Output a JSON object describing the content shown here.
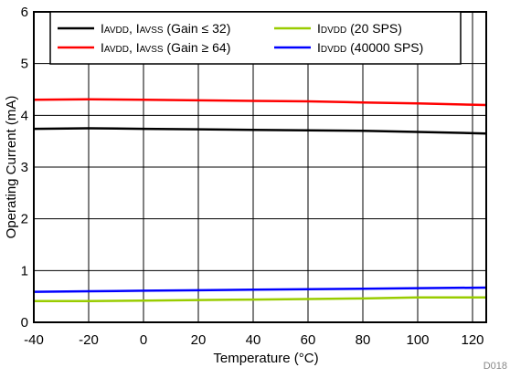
{
  "chart_data": {
    "type": "line",
    "xlabel": "Temperature (°C)",
    "ylabel": "Operating Current (mA)",
    "figure_id": "D018",
    "xlim": [
      -40,
      125
    ],
    "ylim": [
      0,
      6
    ],
    "xticks": [
      -40,
      -20,
      0,
      20,
      40,
      60,
      80,
      100,
      120
    ],
    "yticks": [
      0,
      1,
      2,
      3,
      4,
      5,
      6
    ],
    "grid": true,
    "legend_position": "top",
    "series": [
      {
        "name": "I_AVDD, I_AVSS (Gain ≤ 32)",
        "label_parts": [
          {
            "t": "I"
          },
          {
            "t": "AVDD",
            "sub": true
          },
          {
            "t": ", I"
          },
          {
            "t": "AVSS",
            "sub": true
          },
          {
            "t": " (Gain ≤ 32)"
          }
        ],
        "color": "#000000",
        "x": [
          -40,
          -20,
          0,
          20,
          40,
          60,
          80,
          100,
          125
        ],
        "y": [
          3.74,
          3.75,
          3.74,
          3.73,
          3.72,
          3.71,
          3.7,
          3.68,
          3.65
        ]
      },
      {
        "name": "I_AVDD, I_AVSS (Gain ≥ 64)",
        "label_parts": [
          {
            "t": "I"
          },
          {
            "t": "AVDD",
            "sub": true
          },
          {
            "t": ", I"
          },
          {
            "t": "AVSS",
            "sub": true
          },
          {
            "t": " (Gain ≥ 64)"
          }
        ],
        "color": "#ff0000",
        "x": [
          -40,
          -20,
          0,
          20,
          40,
          60,
          80,
          100,
          125
        ],
        "y": [
          4.3,
          4.31,
          4.3,
          4.29,
          4.28,
          4.27,
          4.25,
          4.23,
          4.2
        ]
      },
      {
        "name": "I_DVDD (20 SPS)",
        "label_parts": [
          {
            "t": "I"
          },
          {
            "t": "DVDD",
            "sub": true
          },
          {
            "t": " (20 SPS)"
          }
        ],
        "color": "#99cc00",
        "x": [
          -40,
          -20,
          0,
          20,
          40,
          60,
          80,
          100,
          125
        ],
        "y": [
          0.41,
          0.41,
          0.42,
          0.43,
          0.44,
          0.45,
          0.46,
          0.48,
          0.48
        ]
      },
      {
        "name": "I_DVDD (40000 SPS)",
        "label_parts": [
          {
            "t": "I"
          },
          {
            "t": "DVDD",
            "sub": true
          },
          {
            "t": " (40000 SPS)"
          }
        ],
        "color": "#0000ff",
        "x": [
          -40,
          -20,
          0,
          20,
          40,
          60,
          80,
          100,
          125
        ],
        "y": [
          0.59,
          0.6,
          0.61,
          0.62,
          0.63,
          0.64,
          0.65,
          0.66,
          0.67
        ]
      }
    ]
  }
}
